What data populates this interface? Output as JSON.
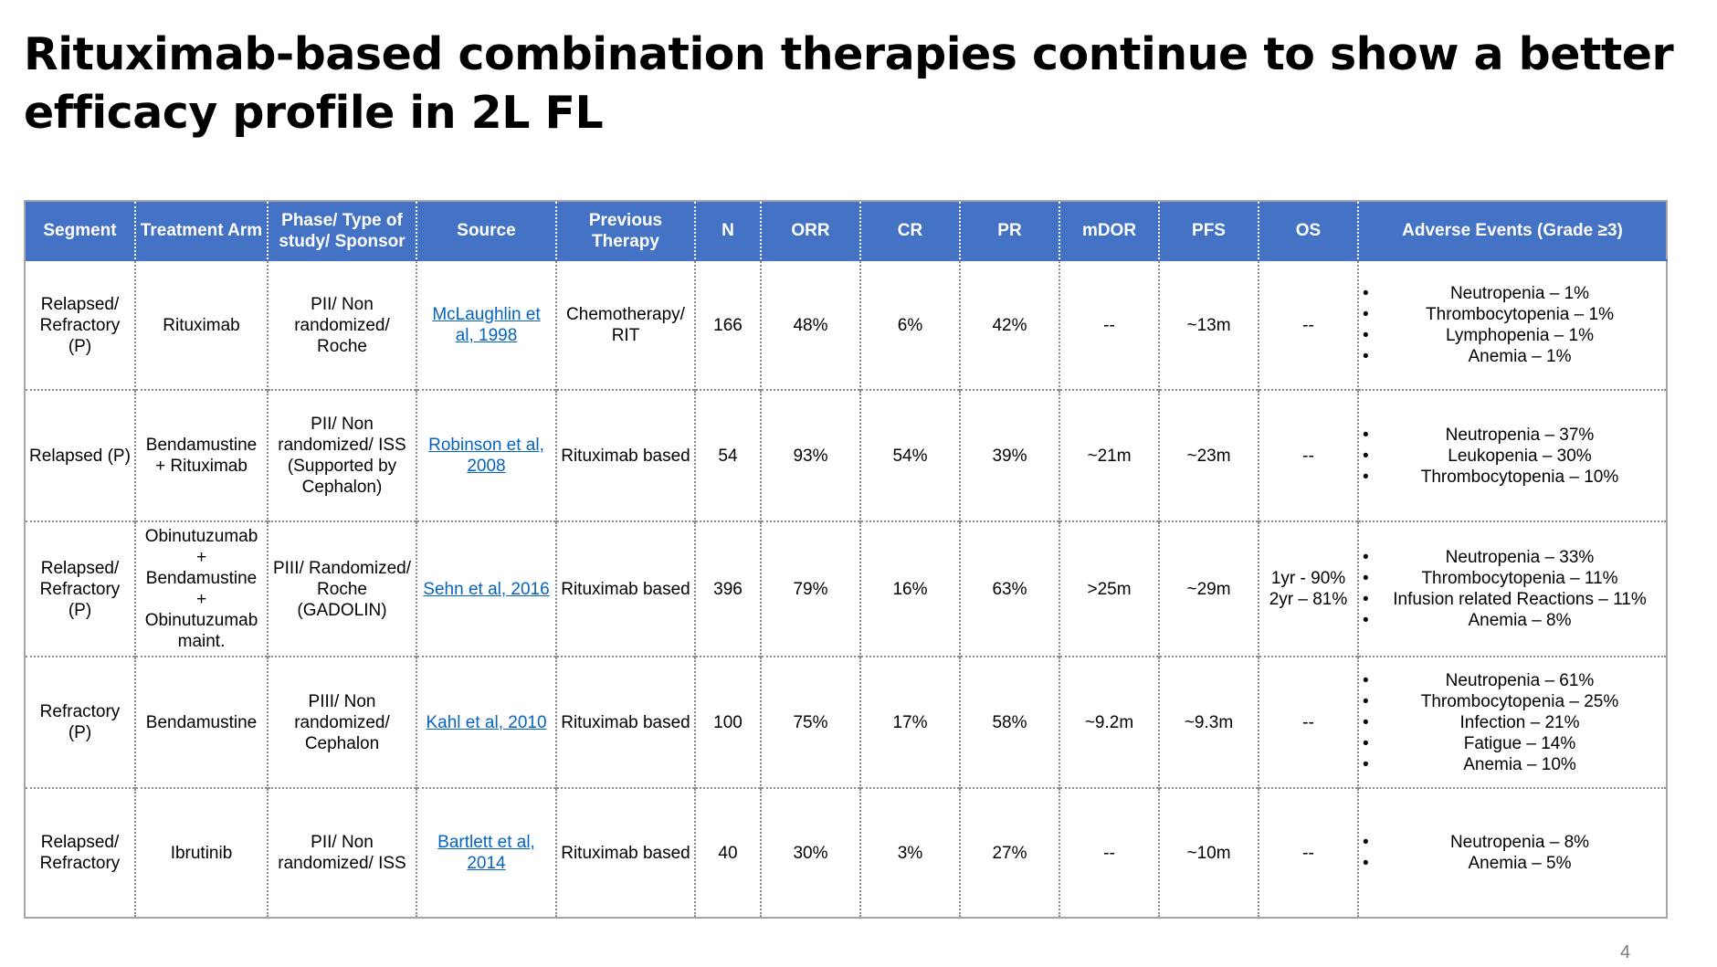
{
  "title": {
    "line1": "Rituximab-based combination therapies continue to show a better",
    "line2": "efficacy profile in 2L FL"
  },
  "table": {
    "headers": {
      "segment": "Segment",
      "treatment_arm": "Treatment Arm",
      "phase": "Phase/ Type of study/ Sponsor",
      "source": "Source",
      "previous_therapy": "Previous Therapy",
      "n": "N",
      "orr": "ORR",
      "cr": "CR",
      "pr": "PR",
      "mdor": "mDOR",
      "pfs": "PFS",
      "os": "OS",
      "adverse_events": "Adverse Events (Grade ≥3)"
    },
    "rows": [
      {
        "segment": "Relapsed/ Refractory (P)",
        "treatment_arm": "Rituximab",
        "phase": "PII/ Non randomized/ Roche",
        "source": "McLaughlin et al, 1998",
        "previous_therapy": "Chemotherapy/ RIT",
        "n": "166",
        "orr": "48%",
        "cr": "6%",
        "pr": "42%",
        "mdor": "--",
        "pfs": "~13m",
        "os": "--",
        "adverse_events": [
          "Neutropenia – 1%",
          "Thrombocytopenia – 1%",
          "Lymphopenia – 1%",
          "Anemia – 1%"
        ]
      },
      {
        "segment": "Relapsed (P)",
        "treatment_arm": "Bendamustine + Rituximab",
        "phase": "PII/ Non randomized/ ISS (Supported by Cephalon)",
        "source": "Robinson et al, 2008",
        "previous_therapy": "Rituximab based",
        "n": "54",
        "orr": "93%",
        "cr": "54%",
        "pr": "39%",
        "mdor": "~21m",
        "pfs": "~23m",
        "os": "--",
        "adverse_events": [
          "Neutropenia – 37%",
          "Leukopenia – 30%",
          "Thrombocytopenia – 10%"
        ]
      },
      {
        "segment": "Relapsed/ Refractory (P)",
        "treatment_arm": "Obinutuzumab + Bendamustine + Obinutuzumab maint.",
        "phase": "PIII/ Randomized/ Roche (GADOLIN)",
        "source": "Sehn et al, 2016",
        "previous_therapy": "Rituximab based",
        "n": "396",
        "orr": "79%",
        "cr": "16%",
        "pr": "63%",
        "mdor": ">25m",
        "pfs": "~29m",
        "os": "1yr - 90% 2yr – 81%",
        "adverse_events": [
          "Neutropenia – 33%",
          "Thrombocytopenia – 11%",
          "Infusion related Reactions – 11%",
          "Anemia – 8%"
        ]
      },
      {
        "segment": "Refractory (P)",
        "treatment_arm": "Bendamustine",
        "phase": "PIII/ Non randomized/ Cephalon",
        "source": "Kahl et al, 2010",
        "previous_therapy": "Rituximab based",
        "n": "100",
        "orr": "75%",
        "cr": "17%",
        "pr": "58%",
        "mdor": "~9.2m",
        "pfs": "~9.3m",
        "os": "--",
        "adverse_events": [
          "Neutropenia – 61%",
          "Thrombocytopenia – 25%",
          "Infection – 21%",
          "Fatigue – 14%",
          "Anemia – 10%"
        ]
      },
      {
        "segment": "Relapsed/ Refractory",
        "treatment_arm": "Ibrutinib",
        "phase": "PII/ Non randomized/ ISS",
        "source": "Bartlett et al, 2014",
        "previous_therapy": "Rituximab based",
        "n": "40",
        "orr": "30%",
        "cr": "3%",
        "pr": "27%",
        "mdor": "--",
        "pfs": "~10m",
        "os": "--",
        "adverse_events": [
          "Neutropenia – 8%",
          "Anemia – 5%"
        ]
      }
    ]
  },
  "page_number": "4",
  "colors": {
    "header_background": "#4472c4",
    "link": "#0563c1"
  }
}
